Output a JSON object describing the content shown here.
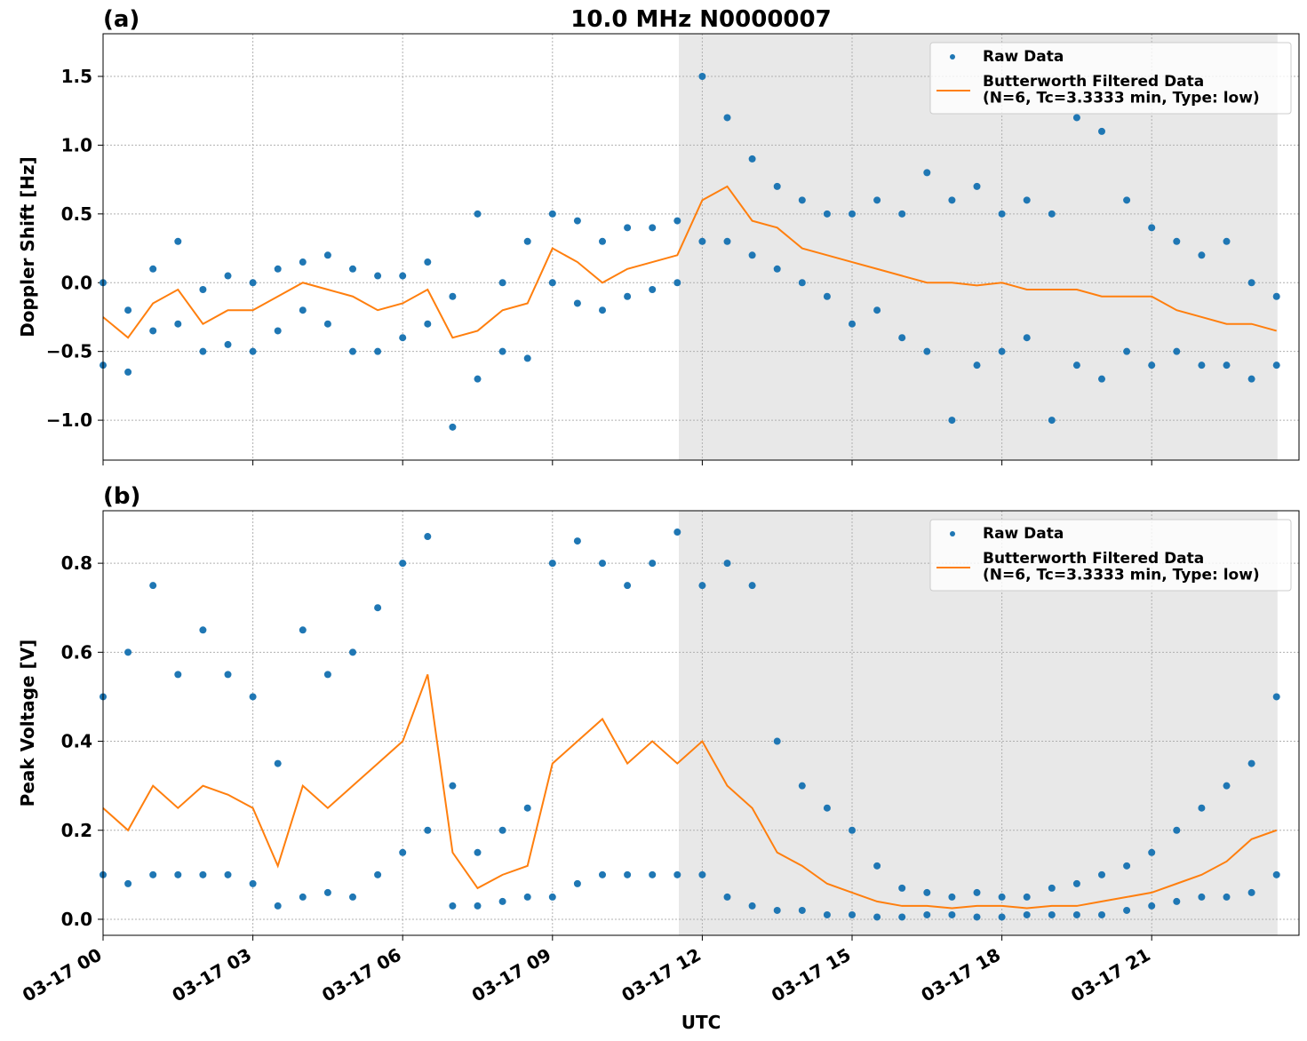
{
  "chart_data": [
    {
      "type": "line",
      "title": "10.0 MHz N0000007",
      "panel_label": "(a)",
      "ylabel": "Doppler Shift [Hz]",
      "xlim": [
        0,
        23.95
      ],
      "xticks": [
        0,
        3,
        6,
        9,
        12,
        15,
        18,
        21
      ],
      "ylim": [
        -1.29,
        1.81
      ],
      "yticks": [
        {
          "value": -1.0,
          "label": "−1.0"
        },
        {
          "value": -0.5,
          "label": "−0.5"
        },
        {
          "value": 0.0,
          "label": "0.0"
        },
        0.5,
        {
          "value": 1.0,
          "label": "1.0"
        },
        1.5
      ],
      "grid": true,
      "legend": "upper right",
      "shaded_region": [
        11.53,
        23.52
      ],
      "series": [
        {
          "name": "Raw Data",
          "type": "scatter",
          "color": "#1f77b4",
          "x": [
            0,
            0,
            0.5,
            0.5,
            1,
            1,
            1.5,
            1.5,
            2,
            2,
            2.5,
            2.5,
            3,
            3,
            3.5,
            3.5,
            4,
            4,
            4.5,
            4.5,
            5,
            5,
            5.5,
            5.5,
            6,
            6,
            6.5,
            6.5,
            7,
            7,
            7.5,
            7.5,
            8,
            8,
            8.5,
            8.5,
            9,
            9,
            9.5,
            9.5,
            10,
            10,
            10.5,
            10.5,
            11,
            11,
            11.5,
            11.5,
            12,
            12,
            12.5,
            12.5,
            13,
            13,
            13.5,
            13.5,
            14,
            14,
            14.5,
            14.5,
            15,
            15,
            15.5,
            15.5,
            16,
            16,
            16.5,
            16.5,
            17,
            17,
            17.5,
            17.5,
            18,
            18,
            18.5,
            18.5,
            19,
            19,
            19.5,
            19.5,
            20,
            20,
            20.5,
            20.5,
            21,
            21,
            21.5,
            21.5,
            22,
            22,
            22.5,
            22.5,
            23,
            23,
            23.5,
            23.5
          ],
          "values": [
            0.0,
            -0.6,
            -0.2,
            -0.65,
            0.1,
            -0.35,
            0.3,
            -0.3,
            -0.05,
            -0.5,
            0.05,
            -0.45,
            0.0,
            -0.5,
            0.1,
            -0.35,
            0.15,
            -0.2,
            0.2,
            -0.3,
            0.1,
            -0.5,
            0.05,
            -0.5,
            0.05,
            -0.4,
            0.15,
            -0.3,
            -0.1,
            -1.05,
            0.5,
            -0.7,
            0.0,
            -0.5,
            0.3,
            -0.55,
            0.5,
            0.0,
            0.45,
            -0.15,
            0.3,
            -0.2,
            0.4,
            -0.1,
            0.4,
            -0.05,
            0.45,
            0.0,
            1.5,
            0.3,
            1.2,
            0.3,
            0.9,
            0.2,
            0.7,
            0.1,
            0.6,
            0.0,
            0.5,
            -0.1,
            0.5,
            -0.3,
            0.6,
            -0.2,
            0.5,
            -0.4,
            0.8,
            -0.5,
            0.6,
            -1.0,
            0.7,
            -0.6,
            0.5,
            -0.5,
            0.6,
            -0.4,
            0.5,
            -1.0,
            1.2,
            -0.6,
            1.1,
            -0.7,
            0.6,
            -0.5,
            0.4,
            -0.6,
            0.3,
            -0.5,
            0.2,
            -0.6,
            0.3,
            -0.6,
            0.0,
            -0.7,
            -0.1,
            -0.6
          ]
        },
        {
          "name": "Butterworth Filtered Data\n(N=6, Tc=3.3333 min, Type: low)",
          "type": "line",
          "color": "#ff7f0e",
          "x": [
            0,
            0.5,
            1,
            1.5,
            2,
            2.5,
            3,
            3.5,
            4,
            4.5,
            5,
            5.5,
            6,
            6.5,
            7,
            7.5,
            8,
            8.5,
            9,
            9.5,
            10,
            10.5,
            11,
            11.5,
            12,
            12.5,
            13,
            13.5,
            14,
            14.5,
            15,
            15.5,
            16,
            16.5,
            17,
            17.5,
            18,
            18.5,
            19,
            19.5,
            20,
            20.5,
            21,
            21.5,
            22,
            22.5,
            23,
            23.5
          ],
          "values": [
            -0.25,
            -0.4,
            -0.15,
            -0.05,
            -0.3,
            -0.2,
            -0.2,
            -0.1,
            0.0,
            -0.05,
            -0.1,
            -0.2,
            -0.15,
            -0.05,
            -0.4,
            -0.35,
            -0.2,
            -0.15,
            0.25,
            0.15,
            0.0,
            0.1,
            0.15,
            0.2,
            0.6,
            0.7,
            0.45,
            0.4,
            0.25,
            0.2,
            0.15,
            0.1,
            0.05,
            0.0,
            0.0,
            -0.02,
            0.0,
            -0.05,
            -0.05,
            -0.05,
            -0.1,
            -0.1,
            -0.1,
            -0.2,
            -0.25,
            -0.3,
            -0.3,
            -0.35
          ]
        }
      ]
    },
    {
      "type": "line",
      "panel_label": "(b)",
      "ylabel": "Peak Voltage [V]",
      "xlabel": "UTC",
      "xlim": [
        0,
        23.95
      ],
      "xticks": [
        {
          "value": 0,
          "label": "03-17 00"
        },
        {
          "value": 3,
          "label": "03-17 03"
        },
        {
          "value": 6,
          "label": "03-17 06"
        },
        {
          "value": 9,
          "label": "03-17 09"
        },
        {
          "value": 12,
          "label": "03-17 12"
        },
        {
          "value": 15,
          "label": "03-17 15"
        },
        {
          "value": 18,
          "label": "03-17 18"
        },
        {
          "value": 21,
          "label": "03-17 21"
        }
      ],
      "ylim": [
        -0.036,
        0.918
      ],
      "yticks": [
        {
          "value": 0.0,
          "label": "0.0"
        },
        0.2,
        0.4,
        0.6,
        0.8
      ],
      "grid": true,
      "legend": "upper right",
      "shaded_region": [
        11.53,
        23.52
      ],
      "series": [
        {
          "name": "Raw Data",
          "type": "scatter",
          "color": "#1f77b4",
          "x": [
            0,
            0,
            0.5,
            0.5,
            1,
            1,
            1.5,
            1.5,
            2,
            2,
            2.5,
            2.5,
            3,
            3,
            3.5,
            3.5,
            4,
            4,
            4.5,
            4.5,
            5,
            5,
            5.5,
            5.5,
            6,
            6,
            6.5,
            6.5,
            7,
            7,
            7.5,
            7.5,
            8,
            8,
            8.5,
            8.5,
            9,
            9,
            9.5,
            9.5,
            10,
            10,
            10.5,
            10.5,
            11,
            11,
            11.5,
            11.5,
            12,
            12,
            12.5,
            12.5,
            13,
            13,
            13.5,
            13.5,
            14,
            14,
            14.5,
            14.5,
            15,
            15,
            15.5,
            15.5,
            16,
            16,
            16.5,
            16.5,
            17,
            17,
            17.5,
            17.5,
            18,
            18,
            18.5,
            18.5,
            19,
            19,
            19.5,
            19.5,
            20,
            20,
            20.5,
            20.5,
            21,
            21,
            21.5,
            21.5,
            22,
            22,
            22.5,
            22.5,
            23,
            23,
            23.5,
            23.5
          ],
          "values": [
            0.5,
            0.1,
            0.6,
            0.08,
            0.75,
            0.1,
            0.55,
            0.1,
            0.65,
            0.1,
            0.55,
            0.1,
            0.5,
            0.08,
            0.35,
            0.03,
            0.65,
            0.05,
            0.55,
            0.06,
            0.6,
            0.05,
            0.7,
            0.1,
            0.8,
            0.15,
            0.86,
            0.2,
            0.3,
            0.03,
            0.15,
            0.03,
            0.2,
            0.04,
            0.25,
            0.05,
            0.8,
            0.05,
            0.85,
            0.08,
            0.8,
            0.1,
            0.75,
            0.1,
            0.8,
            0.1,
            0.87,
            0.1,
            0.75,
            0.1,
            0.8,
            0.05,
            0.75,
            0.03,
            0.4,
            0.02,
            0.3,
            0.02,
            0.25,
            0.01,
            0.2,
            0.01,
            0.12,
            0.005,
            0.07,
            0.005,
            0.06,
            0.01,
            0.05,
            0.01,
            0.06,
            0.005,
            0.05,
            0.005,
            0.05,
            0.01,
            0.07,
            0.01,
            0.08,
            0.01,
            0.1,
            0.01,
            0.12,
            0.02,
            0.15,
            0.03,
            0.2,
            0.04,
            0.25,
            0.05,
            0.3,
            0.05,
            0.35,
            0.06,
            0.5,
            0.1
          ]
        },
        {
          "name": "Butterworth Filtered Data\n(N=6, Tc=3.3333 min, Type: low)",
          "type": "line",
          "color": "#ff7f0e",
          "x": [
            0,
            0.5,
            1,
            1.5,
            2,
            2.5,
            3,
            3.5,
            4,
            4.5,
            5,
            5.5,
            6,
            6.5,
            7,
            7.5,
            8,
            8.5,
            9,
            9.5,
            10,
            10.5,
            11,
            11.5,
            12,
            12.5,
            13,
            13.5,
            14,
            14.5,
            15,
            15.5,
            16,
            16.5,
            17,
            17.5,
            18,
            18.5,
            19,
            19.5,
            20,
            20.5,
            21,
            21.5,
            22,
            22.5,
            23,
            23.5
          ],
          "values": [
            0.25,
            0.2,
            0.3,
            0.25,
            0.3,
            0.28,
            0.25,
            0.12,
            0.3,
            0.25,
            0.3,
            0.35,
            0.4,
            0.55,
            0.15,
            0.07,
            0.1,
            0.12,
            0.35,
            0.4,
            0.45,
            0.35,
            0.4,
            0.35,
            0.4,
            0.3,
            0.25,
            0.15,
            0.12,
            0.08,
            0.06,
            0.04,
            0.03,
            0.03,
            0.025,
            0.03,
            0.03,
            0.025,
            0.03,
            0.03,
            0.04,
            0.05,
            0.06,
            0.08,
            0.1,
            0.13,
            0.18,
            0.2
          ]
        }
      ]
    }
  ]
}
